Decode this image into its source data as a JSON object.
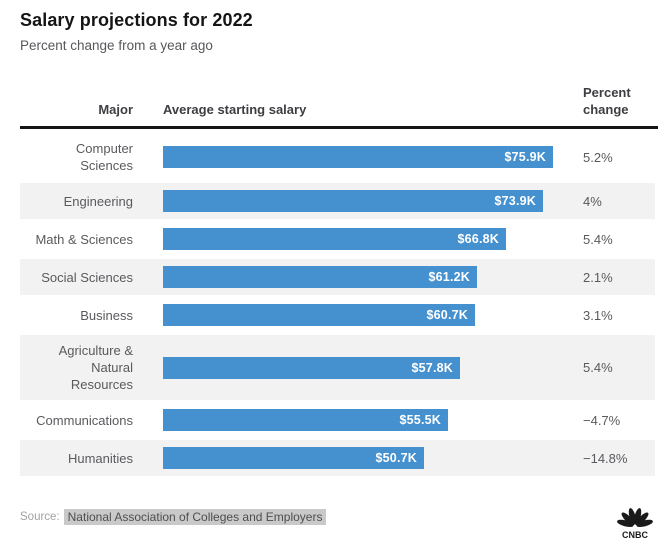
{
  "title": "Salary projections for 2022",
  "subtitle": "Percent change from a year ago",
  "table_header": {
    "major": "Major",
    "salary": "Average starting salary",
    "percent": "Percent change"
  },
  "rows": [
    {
      "major": "Computer\nSciences",
      "salary_label": "$75.9K",
      "salary_value": 75.9,
      "percent": "5.2%"
    },
    {
      "major": "Engineering",
      "salary_label": "$73.9K",
      "salary_value": 73.9,
      "percent": "4%"
    },
    {
      "major": "Math & Sciences",
      "salary_label": "$66.8K",
      "salary_value": 66.8,
      "percent": "5.4%"
    },
    {
      "major": "Social Sciences",
      "salary_label": "$61.2K",
      "salary_value": 61.2,
      "percent": "2.1%"
    },
    {
      "major": "Business",
      "salary_label": "$60.7K",
      "salary_value": 60.7,
      "percent": "3.1%"
    },
    {
      "major": "Agriculture &\nNatural\nResources",
      "salary_label": "$57.8K",
      "salary_value": 57.8,
      "percent": "5.4%"
    },
    {
      "major": "Communications",
      "salary_label": "$55.5K",
      "salary_value": 55.5,
      "percent": "−4.7%"
    },
    {
      "major": "Humanities",
      "salary_label": "$50.7K",
      "salary_value": 50.7,
      "percent": "−14.8%"
    }
  ],
  "source": {
    "prefix": "Source:",
    "name": "National Association of Colleges and Employers"
  },
  "logo": {
    "text": "CNBC"
  },
  "colors": {
    "bar": "#4590CE",
    "row_alt_background": "#F2F2F2",
    "rule": "#141414",
    "body_text": "#5A5A5E",
    "header_text": "#3E3E42",
    "source_highlight": "#C9C9C9"
  },
  "chart_data": {
    "type": "bar",
    "orientation": "horizontal",
    "title": "Salary projections for 2022",
    "subtitle": "Percent change from a year ago",
    "categories": [
      "Computer Sciences",
      "Engineering",
      "Math & Sciences",
      "Social Sciences",
      "Business",
      "Agriculture & Natural Resources",
      "Communications",
      "Humanities"
    ],
    "series": [
      {
        "name": "Average starting salary",
        "unit": "USD",
        "values": [
          75900,
          73900,
          66800,
          61200,
          60700,
          57800,
          55500,
          50700
        ],
        "labels": [
          "$75.9K",
          "$73.9K",
          "$66.8K",
          "$61.2K",
          "$60.7K",
          "$57.8K",
          "$55.5K",
          "$50.7K"
        ]
      },
      {
        "name": "Percent change",
        "unit": "%",
        "values": [
          5.2,
          4,
          5.4,
          2.1,
          3.1,
          5.4,
          -4.7,
          -14.8
        ],
        "labels": [
          "5.2%",
          "4%",
          "5.4%",
          "2.1%",
          "3.1%",
          "5.4%",
          "−4.7%",
          "−14.8%"
        ]
      }
    ],
    "xlim": [
      0,
      75.9
    ],
    "grid": false,
    "legend": false,
    "bar_color": "#4590CE",
    "source": "National Association of Colleges and Employers",
    "branding": "CNBC"
  }
}
